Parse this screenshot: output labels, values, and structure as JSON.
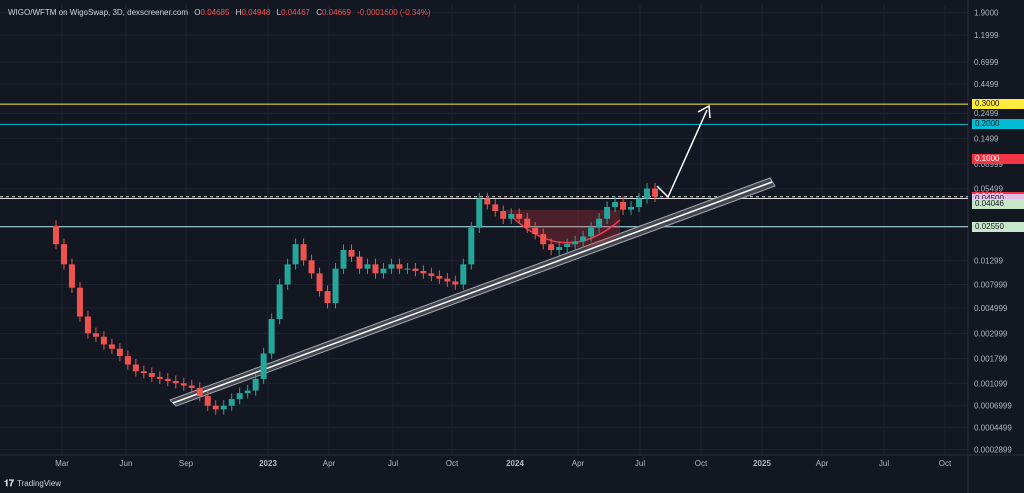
{
  "header": {
    "symbol": "WIGO/WFTM on WigoSwap, 3D, dexscreener.com",
    "o_label": "O",
    "o_val": "0.04685",
    "h_label": "H",
    "h_val": "0.04948",
    "l_label": "L",
    "l_val": "0.04467",
    "c_label": "C",
    "c_val": "0.04669",
    "change": "-0.0001600 (-0.34%)"
  },
  "footer": {
    "brand": "TradingView"
  },
  "colors": {
    "bg": "#131722",
    "up": "#26a69a",
    "down": "#ef5350",
    "grid": "#1f2330"
  },
  "chart_data": {
    "type": "candlestick",
    "title": "",
    "y_scale": "log",
    "ylim": [
      0.00026,
      2.2
    ],
    "y_ticks": [
      "1.9000",
      "1.1999",
      "0.6999",
      "0.4499",
      "0.2499",
      "0.1499",
      "0.08999",
      "0.05499",
      "0.02550",
      "0.01299",
      "0.007999",
      "0.004999",
      "0.002999",
      "0.001799",
      "0.001099",
      "0.0006999",
      "0.0004499",
      "0.0002899"
    ],
    "x_ticks": [
      "Mar",
      "Jun",
      "Sep",
      "2023",
      "Apr",
      "Jul",
      "Oct",
      "2024",
      "Apr",
      "Jul",
      "Oct",
      "2025",
      "Apr",
      "Jul",
      "Oct"
    ],
    "price_labels": [
      {
        "label": "0.3000",
        "bg": "#ffeb3b",
        "fg": "#131722",
        "value": 0.3
      },
      {
        "label": "0.2000",
        "bg": "#00bcd4",
        "fg": "#131722",
        "value": 0.2
      },
      {
        "label": "0.1000",
        "bg": "#f23645",
        "fg": "#ffffff",
        "value": 0.1
      },
      {
        "label": "0.04669",
        "bg": "#f23645",
        "fg": "#ffffff",
        "value": 0.04669
      },
      {
        "label": "0.04500",
        "bg": "#e1bee7",
        "fg": "#131722",
        "value": 0.045
      },
      {
        "label": "0.04046",
        "bg": "#c8e6c9",
        "fg": "#131722",
        "value": 0.04046
      },
      {
        "label": "0.02550",
        "bg": "#c8e6c9",
        "fg": "#131722",
        "value": 0.0255
      }
    ],
    "horizontal_lines": [
      {
        "value": 0.3,
        "color": "#ffeb3b"
      },
      {
        "value": 0.2,
        "color": "#00bcd4"
      },
      {
        "value": 0.045,
        "color": "#e0e0e0"
      },
      {
        "value": 0.0255,
        "color": "#b2ebf2"
      }
    ],
    "current_price": 0.04669,
    "series": [
      {
        "values": [
          0.026,
          0.018,
          0.012,
          0.0075,
          0.0042,
          0.003,
          0.0028,
          0.0024,
          0.0022,
          0.0019,
          0.0016,
          0.0014,
          0.00135,
          0.00125,
          0.0012,
          0.00115,
          0.0011,
          0.00105,
          0.001,
          0.00085,
          0.0007,
          0.00065,
          0.0007,
          0.0008,
          0.0009,
          0.00095,
          0.0012,
          0.002,
          0.004,
          0.008,
          0.012,
          0.018,
          0.013,
          0.01,
          0.007,
          0.0055,
          0.011,
          0.016,
          0.014,
          0.011,
          0.012,
          0.01,
          0.011,
          0.012,
          0.011,
          0.011,
          0.0105,
          0.01,
          0.0095,
          0.009,
          0.0085,
          0.008,
          0.012,
          0.025,
          0.045,
          0.04,
          0.035,
          0.03,
          0.033,
          0.03,
          0.025,
          0.022,
          0.018,
          0.016,
          0.017,
          0.018,
          0.019,
          0.021,
          0.025,
          0.03,
          0.038,
          0.042,
          0.036,
          0.038,
          0.045,
          0.055,
          0.04669
        ]
      }
    ]
  }
}
